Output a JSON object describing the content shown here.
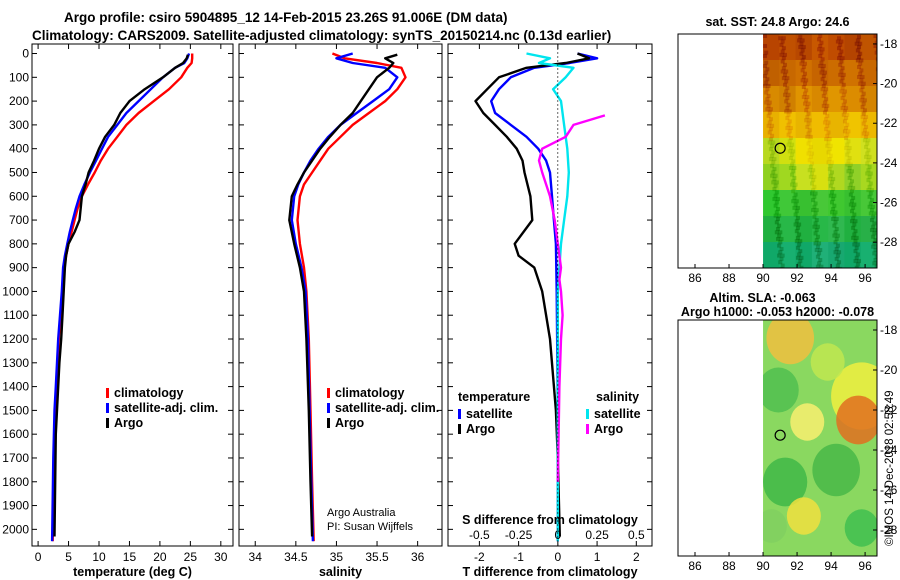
{
  "header": {
    "line1": "Argo profile: csiro 5904895_12 14-Feb-2015 23.26S 91.006E (DM data)",
    "line2": "Climatology: CARS2009. Satellite-adjusted climatology: synTS_20150214.nc (0.13d earlier)"
  },
  "colors": {
    "climatology": "#ff0000",
    "satellite": "#0000ff",
    "argo": "#000000",
    "sat_salinity": "#00e5ee",
    "argo_salinity": "#ff00ff"
  },
  "chart_data": [
    {
      "id": "temperature",
      "type": "line",
      "xlabel": "temperature (deg C)",
      "ylabel": "",
      "xlim": [
        -1,
        32
      ],
      "ylim": [
        2070,
        -40
      ],
      "xticks": [
        0,
        5,
        10,
        15,
        20,
        25,
        30
      ],
      "xtick_labels": [
        "0",
        "5",
        "10",
        "15",
        "20",
        "25",
        "30"
      ],
      "yticks": [
        0,
        100,
        200,
        300,
        400,
        500,
        600,
        700,
        800,
        900,
        1000,
        1100,
        1200,
        1300,
        1400,
        1500,
        1600,
        1700,
        1800,
        1900,
        2000
      ],
      "ytick_labels": [
        "0",
        "100",
        "200",
        "300",
        "400",
        "500",
        "600",
        "700",
        "800",
        "900",
        "1000",
        "1100",
        "1200",
        "1300",
        "1400",
        "1500",
        "1600",
        "1700",
        "1800",
        "1900",
        "2000"
      ],
      "legend": {
        "position": "lower-middle",
        "entries": [
          "climatology",
          "satellite-adj. clim.",
          "Argo"
        ]
      },
      "series": [
        {
          "name": "climatology",
          "color": "#ff0000",
          "x": [
            25.3,
            25.3,
            25.2,
            24.5,
            23.5,
            21.5,
            19,
            16.5,
            14.5,
            13,
            11.5,
            10.3,
            9.3,
            8.2,
            7.2,
            6.5,
            6.0,
            5.5,
            5.0,
            4.6,
            4.3,
            4.0,
            3.7,
            3.4,
            3.2,
            3.0,
            2.8,
            2.6,
            2.4
          ],
          "y": [
            0,
            20,
            40,
            60,
            100,
            150,
            200,
            250,
            300,
            350,
            400,
            450,
            500,
            550,
            600,
            650,
            700,
            750,
            800,
            850,
            900,
            1000,
            1100,
            1200,
            1300,
            1400,
            1500,
            1700,
            2050
          ]
        },
        {
          "name": "satellite-adj. clim.",
          "color": "#0000ff",
          "x": [
            24.8,
            24.5,
            24,
            22.5,
            20.5,
            18.5,
            16.5,
            14.5,
            13,
            11.5,
            10.5,
            9.5,
            8.5,
            7.6,
            6.8,
            6.2,
            5.7,
            5.2,
            4.8,
            4.4,
            4.1,
            3.9,
            3.6,
            3.3,
            3.1,
            2.9,
            2.7,
            2.5,
            2.3
          ],
          "y": [
            0,
            20,
            40,
            60,
            100,
            150,
            200,
            250,
            300,
            350,
            400,
            450,
            500,
            550,
            600,
            650,
            700,
            750,
            800,
            850,
            900,
            1000,
            1100,
            1200,
            1300,
            1400,
            1500,
            1700,
            2050
          ]
        },
        {
          "name": "Argo",
          "color": "#000000",
          "x": [
            24.6,
            24.4,
            23.8,
            22.5,
            20.5,
            17.5,
            15,
            13.5,
            12.5,
            11,
            10,
            9.2,
            8.3,
            7.8,
            7.2,
            6.8,
            6.0,
            5.0,
            4.6,
            4.4,
            4.2,
            4.0,
            3.8,
            3.5,
            3.3,
            3.1,
            2.9,
            2.7
          ],
          "y": [
            5,
            20,
            40,
            60,
            100,
            150,
            200,
            250,
            300,
            350,
            400,
            450,
            500,
            550,
            600,
            700,
            750,
            800,
            850,
            900,
            1000,
            1100,
            1200,
            1300,
            1400,
            1500,
            1600,
            2030
          ]
        }
      ]
    },
    {
      "id": "salinity",
      "type": "line",
      "xlabel": "salinity",
      "ylabel": "",
      "xlim": [
        33.8,
        36.3
      ],
      "ylim": [
        2070,
        -40
      ],
      "xticks": [
        34,
        34.5,
        35,
        35.5,
        36
      ],
      "xtick_labels": [
        "34",
        "34.5",
        "35",
        "35.5",
        "36"
      ],
      "legend": {
        "position": "lower-middle",
        "entries": [
          "climatology",
          "satellite-adj. clim.",
          "Argo"
        ]
      },
      "annotations": [
        "Argo Australia",
        "PI: Susan Wijffels"
      ],
      "series": [
        {
          "name": "climatology",
          "color": "#ff0000",
          "x": [
            34.95,
            35.1,
            35.5,
            35.8,
            35.85,
            35.75,
            35.6,
            35.4,
            35.2,
            35.05,
            34.9,
            34.8,
            34.7,
            34.6,
            34.55,
            34.52,
            34.55,
            34.6,
            34.63,
            34.66,
            34.68,
            34.7,
            34.72
          ],
          "y": [
            0,
            20,
            40,
            60,
            100,
            150,
            200,
            250,
            300,
            350,
            400,
            450,
            500,
            550,
            600,
            700,
            800,
            900,
            1000,
            1200,
            1500,
            1800,
            2050
          ]
        },
        {
          "name": "satellite-adj. clim.",
          "color": "#0000ff",
          "x": [
            35.2,
            35.0,
            35.2,
            35.6,
            35.75,
            35.65,
            35.45,
            35.25,
            35.05,
            34.9,
            34.78,
            34.68,
            34.6,
            34.53,
            34.48,
            34.45,
            34.5,
            34.57,
            34.62,
            34.65,
            34.67,
            34.69,
            34.71
          ],
          "y": [
            0,
            20,
            40,
            60,
            100,
            150,
            200,
            250,
            300,
            350,
            400,
            450,
            500,
            550,
            600,
            700,
            800,
            900,
            1000,
            1200,
            1500,
            1800,
            2050
          ]
        },
        {
          "name": "Argo",
          "color": "#000000",
          "x": [
            35.75,
            35.6,
            35.7,
            35.65,
            35.5,
            35.4,
            35.3,
            35.2,
            35.05,
            34.92,
            34.8,
            34.7,
            34.6,
            34.52,
            34.45,
            34.42,
            34.48,
            34.55,
            34.6,
            34.63,
            34.66,
            34.68,
            34.7
          ],
          "y": [
            5,
            20,
            40,
            60,
            100,
            150,
            200,
            250,
            300,
            350,
            400,
            450,
            500,
            550,
            600,
            700,
            800,
            900,
            1000,
            1200,
            1500,
            1800,
            2030
          ]
        }
      ]
    },
    {
      "id": "difference",
      "type": "line",
      "xlabel": "T difference from climatology",
      "x2label": "S difference from climatology",
      "xlim": [
        -2.8,
        2.4
      ],
      "ylim": [
        2070,
        -40
      ],
      "xticks": [
        -2,
        -1,
        0,
        1,
        2
      ],
      "xtick_labels": [
        "-2",
        "-1",
        "0",
        "1",
        "2"
      ],
      "x2ticks": [
        -0.5,
        -0.25,
        0,
        0.25,
        0.5
      ],
      "x2tick_labels": [
        "-0.5",
        "-0.25",
        "0",
        "0.25",
        "0.5"
      ],
      "x2_scale": 4,
      "legend": {
        "position": "lower-middle",
        "temperature_title": "temperature",
        "salinity_title": "salinity",
        "entries": [
          "satellite",
          "Argo",
          "satellite",
          "Argo"
        ]
      },
      "series": [
        {
          "name": "T satellite",
          "color": "#0000ff",
          "scale": 1,
          "x": [
            0.5,
            1,
            0.3,
            -0.6,
            -1.2,
            -1.5,
            -1.7,
            -1.6,
            -1.2,
            -0.8,
            -0.5,
            -0.3,
            -0.2,
            -0.15,
            -0.1,
            -0.05,
            -0.03,
            0,
            0
          ],
          "y": [
            0,
            20,
            40,
            60,
            100,
            150,
            200,
            250,
            300,
            350,
            400,
            450,
            500,
            600,
            700,
            800,
            1000,
            1500,
            2050
          ]
        },
        {
          "name": "T Argo",
          "color": "#000000",
          "scale": 1,
          "x": [
            0.5,
            0.8,
            0.2,
            -0.8,
            -1.5,
            -1.8,
            -2.1,
            -1.9,
            -1.6,
            -1.3,
            -1.05,
            -0.9,
            -0.85,
            -0.7,
            -0.65,
            -1.1,
            -1.0,
            -0.6,
            -0.4,
            -0.2,
            -0.05,
            0,
            0.05
          ],
          "y": [
            0,
            20,
            40,
            60,
            100,
            150,
            200,
            250,
            300,
            350,
            400,
            450,
            500,
            600,
            700,
            800,
            850,
            900,
            1000,
            1200,
            1500,
            1700,
            2030
          ]
        },
        {
          "name": "S satellite",
          "color": "#00e5ee",
          "scale": 4,
          "x": [
            -0.2,
            -0.05,
            -0.12,
            0.1,
            0.05,
            -0.03,
            0.02,
            0.04,
            0.06,
            0.07,
            0.06,
            0.04,
            0.02,
            0.01,
            0,
            0,
            0
          ],
          "y": [
            0,
            20,
            40,
            60,
            100,
            150,
            200,
            300,
            400,
            500,
            600,
            700,
            800,
            900,
            1000,
            1500,
            2050
          ]
        },
        {
          "name": "S Argo",
          "color": "#ff00ff",
          "scale": 4,
          "x": [
            0.3,
            0.1,
            0.05,
            -0.1,
            -0.12,
            -0.1,
            -0.05,
            -0.02,
            0,
            0.02,
            0.01,
            0.02,
            0.03,
            0.02,
            0.01,
            0
          ],
          "y": [
            260,
            300,
            350,
            400,
            450,
            500,
            600,
            700,
            800,
            900,
            950,
            1000,
            1100,
            1200,
            1400,
            1800
          ]
        }
      ]
    },
    {
      "id": "sst-map",
      "type": "heatmap",
      "title": "sat. SST: 24.8 Argo: 24.6",
      "xlim": [
        85,
        96.7
      ],
      "ylim": [
        -29.3,
        -17.5
      ],
      "xticks": [
        86,
        88,
        90,
        92,
        94,
        96
      ],
      "xtick_labels": [
        "86",
        "88",
        "90",
        "92",
        "94",
        "96"
      ],
      "yticks": [
        -18,
        -20,
        -22,
        -24,
        -26,
        -28
      ],
      "ytick_labels": [
        "-18",
        "-20",
        "-22",
        "-24",
        "-26",
        "-28"
      ],
      "data_x_range": [
        90,
        96.7
      ],
      "marker": [
        91.006,
        -23.26
      ],
      "rows": [
        [
          "#b84400",
          "#c05000",
          "#b84800",
          "#c85800",
          "#c04c00",
          "#b44400",
          "#c05400"
        ],
        [
          "#c06000",
          "#c86800",
          "#d07000",
          "#c66400",
          "#cc6c00",
          "#d07200",
          "#c86800"
        ],
        [
          "#d88a00",
          "#d08000",
          "#e09400",
          "#d88800",
          "#e09600",
          "#dc8c00",
          "#d48400"
        ],
        [
          "#e8b000",
          "#f0c000",
          "#e8b400",
          "#f0bc00",
          "#e8b400",
          "#f0c400",
          "#ecb800"
        ],
        [
          "#b8d820",
          "#d0e010",
          "#f0e000",
          "#e8d800",
          "#f0e400",
          "#e0e010",
          "#d0e020"
        ],
        [
          "#90d020",
          "#a0d820",
          "#c8e020",
          "#d8e010",
          "#b0d820",
          "#90d028",
          "#a8d820"
        ],
        [
          "#30c830",
          "#40c838",
          "#38c030",
          "#48c838",
          "#40c830",
          "#38c030",
          "#48c838"
        ],
        [
          "#20b040",
          "#28b848",
          "#20b040",
          "#28b848",
          "#30b850",
          "#20b040",
          "#28b048"
        ],
        [
          "#10a868",
          "#18b070",
          "#10a868",
          "#20b078",
          "#18a870",
          "#10a868",
          "#18b070"
        ]
      ]
    },
    {
      "id": "sla-map",
      "type": "heatmap",
      "title": "Altim. SLA: -0.063",
      "subtitle": "Argo h1000: -0.053 h2000: -0.078",
      "xlim": [
        85,
        96.7
      ],
      "ylim": [
        -29.3,
        -17.5
      ],
      "xticks": [
        86,
        88,
        90,
        92,
        94,
        96
      ],
      "xtick_labels": [
        "86",
        "88",
        "90",
        "92",
        "94",
        "96"
      ],
      "yticks": [
        -18,
        -20,
        -22,
        -24,
        -26,
        -28
      ],
      "ytick_labels": [
        "-18",
        "-20",
        "-22",
        "-24",
        "-26",
        "-28"
      ],
      "data_x_range": [
        90,
        96.7
      ],
      "marker": [
        91.006,
        -23.26
      ],
      "base_color": "#8ad860",
      "blobs": [
        {
          "x": 91.6,
          "y": -18.4,
          "r": 1.4,
          "color": "#f0c040"
        },
        {
          "x": 95.8,
          "y": -21.3,
          "r": 1.8,
          "color": "#f0f040"
        },
        {
          "x": 95.6,
          "y": -22.5,
          "r": 1.3,
          "color": "#e07020"
        },
        {
          "x": 92.6,
          "y": -22.6,
          "r": 1.0,
          "color": "#f8f070"
        },
        {
          "x": 93.8,
          "y": -19.6,
          "r": 1.0,
          "color": "#c0e850"
        },
        {
          "x": 90.9,
          "y": -21.0,
          "r": 1.2,
          "color": "#50c050"
        },
        {
          "x": 94.3,
          "y": -25.0,
          "r": 1.4,
          "color": "#48b848"
        },
        {
          "x": 91.3,
          "y": -25.6,
          "r": 1.3,
          "color": "#40b848"
        },
        {
          "x": 92.4,
          "y": -27.3,
          "r": 1.0,
          "color": "#f0e040"
        },
        {
          "x": 95.8,
          "y": -27.9,
          "r": 1.0,
          "color": "#40c050"
        },
        {
          "x": 90.5,
          "y": -27.8,
          "r": 0.9,
          "color": "#80d060"
        }
      ]
    }
  ],
  "footer": {
    "credit": "©IMOS 14-Dec-2018 02:58:49"
  }
}
